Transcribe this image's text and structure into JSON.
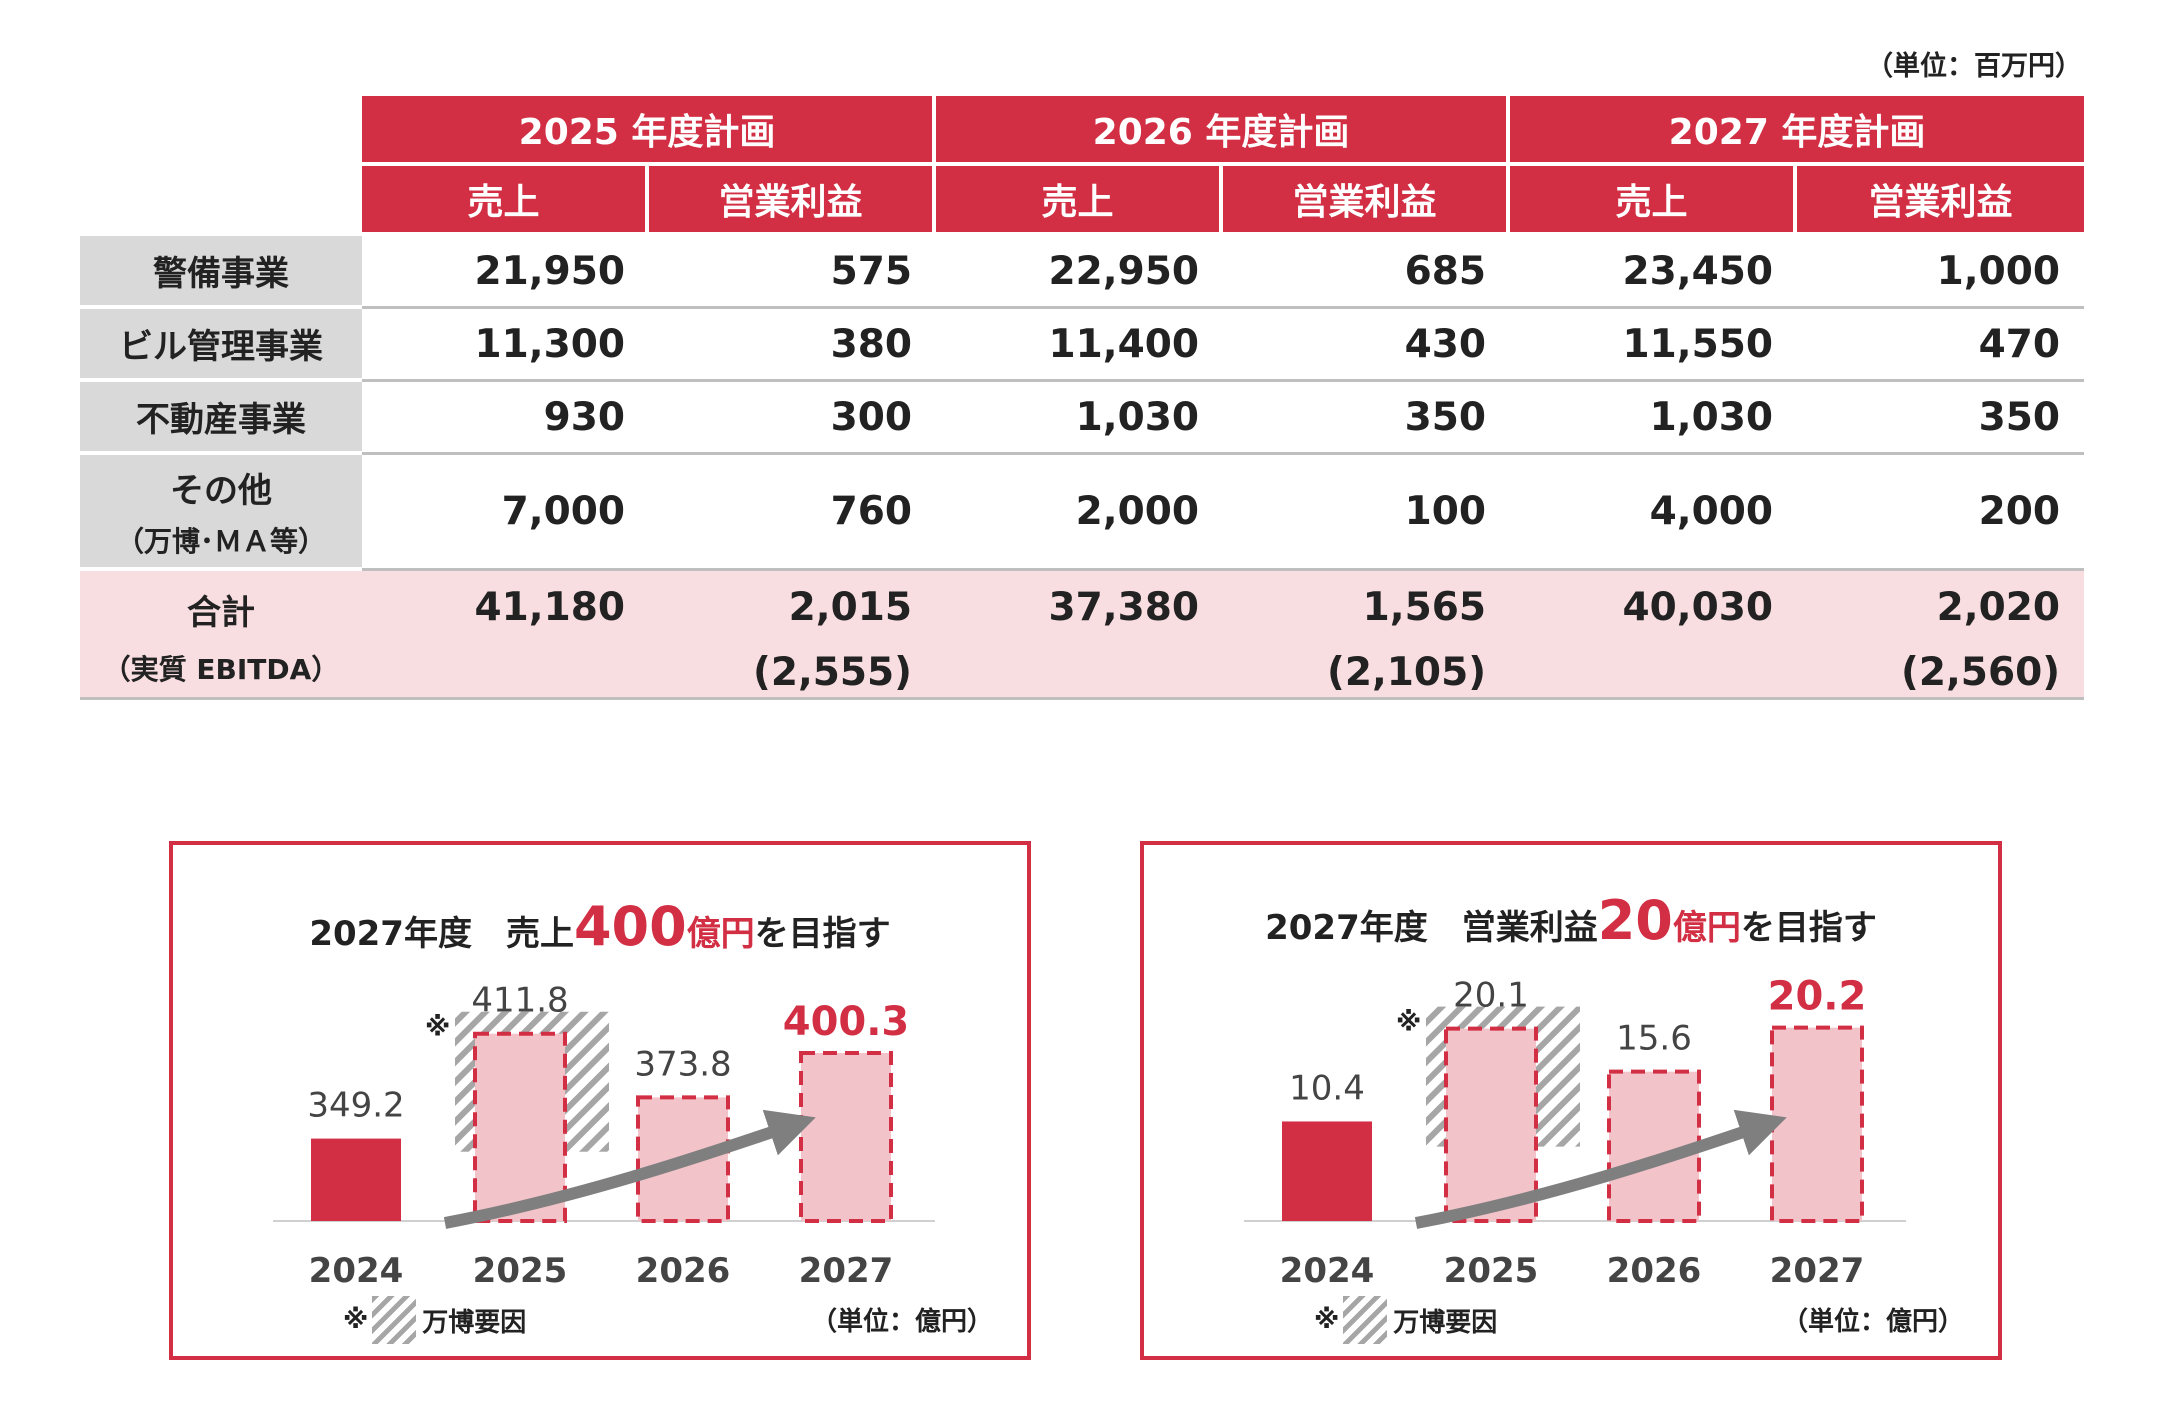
{
  "unit_label": "（単位：百万円）",
  "table": {
    "years": [
      "2025 年度計画",
      "2026 年度計画",
      "2027 年度計画"
    ],
    "sub_headers": [
      "売上",
      "営業利益",
      "売上",
      "営業利益",
      "売上",
      "営業利益"
    ],
    "rows": [
      {
        "label": "警備事業",
        "sub": "",
        "values": [
          "21,950",
          "575",
          "22,950",
          "685",
          "23,450",
          "1,000"
        ]
      },
      {
        "label": "ビル管理事業",
        "sub": "",
        "values": [
          "11,300",
          "380",
          "11,400",
          "430",
          "11,550",
          "470"
        ]
      },
      {
        "label": "不動産事業",
        "sub": "",
        "values": [
          "930",
          "300",
          "1,030",
          "350",
          "1,030",
          "350"
        ]
      },
      {
        "label": "その他",
        "sub": "（万博･ＭＡ等）",
        "values": [
          "7,000",
          "760",
          "2,000",
          "100",
          "4,000",
          "200"
        ]
      }
    ],
    "total": {
      "label": "合計",
      "sub": "（実質 EBITDA）",
      "values": [
        "41,180",
        "2,015",
        "37,380",
        "1,565",
        "40,030",
        "2,020"
      ],
      "ebitda": [
        "(2,555)",
        "(2,105)",
        "(2,560)"
      ]
    }
  },
  "chart_data": [
    {
      "type": "bar",
      "title_prefix": "2027年度　売上",
      "title_target": "400",
      "title_unit": "億円",
      "title_suffix": "を目指す",
      "categories": [
        "2024",
        "2025",
        "2026",
        "2027"
      ],
      "values": [
        349.2,
        411.8,
        373.8,
        400.3
      ],
      "value_labels": [
        "349.2",
        "411.8",
        "373.8",
        "400.3"
      ],
      "expo_factor_category": "2025",
      "highlight_category": "2027",
      "ylim": [
        300,
        420
      ],
      "colors": {
        "actual": "#d22f44",
        "plan_fill": "#f2c4ca",
        "plan_border": "#d22f44",
        "hatch": "#a6a6a6",
        "arrow": "#7f7f7f"
      },
      "legend_mark": "※",
      "legend_label": "万博要因",
      "unit": "（単位：億円）"
    },
    {
      "type": "bar",
      "title_prefix": "2027年度　営業利益",
      "title_target": "20",
      "title_unit": "億円",
      "title_suffix": "を目指す",
      "categories": [
        "2024",
        "2025",
        "2026",
        "2027"
      ],
      "values": [
        10.4,
        20.1,
        15.6,
        20.2
      ],
      "value_labels": [
        "10.4",
        "20.1",
        "15.6",
        "20.2"
      ],
      "expo_factor_category": "2025",
      "highlight_category": "2027",
      "ylim": [
        0,
        21
      ],
      "colors": {
        "actual": "#d22f44",
        "plan_fill": "#f2c4ca",
        "plan_border": "#d22f44",
        "hatch": "#a6a6a6",
        "arrow": "#7f7f7f"
      },
      "legend_mark": "※",
      "legend_label": "万博要因",
      "unit": "（単位：億円）"
    }
  ]
}
